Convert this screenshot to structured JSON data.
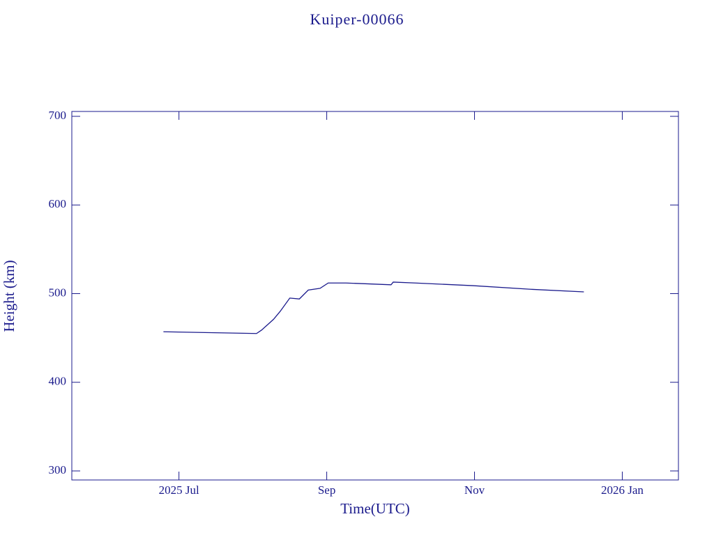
{
  "chart_data": {
    "type": "line",
    "title": "Kuiper-00066",
    "x_label": "Time(UTC)",
    "y_label": "Height (km)",
    "x": [
      5.79,
      7.05,
      7.12,
      7.28,
      7.37,
      7.5,
      7.63,
      7.75,
      7.91,
      8.02,
      8.26,
      8.87,
      8.9,
      9.2,
      9.98,
      10.74,
      11.48
    ],
    "series": [
      {
        "name": "Kuiper-00066",
        "color": "#1a1a8c",
        "values": [
          457,
          455,
          459,
          471,
          480,
          495,
          494,
          504,
          506,
          512,
          512,
          510,
          513,
          512,
          509,
          505,
          502
        ]
      }
    ],
    "xlim": [
      4.55,
      12.76
    ],
    "xticks": [
      {
        "value": 6,
        "label": "2025 Jul"
      },
      {
        "value": 8,
        "label": "Sep"
      },
      {
        "value": 10,
        "label": "Nov"
      },
      {
        "value": 12,
        "label": "2026 Jan"
      }
    ],
    "ylim": [
      289.8,
      705.5
    ],
    "yticks": [
      300,
      400,
      500,
      600,
      700
    ],
    "grid": false
  }
}
